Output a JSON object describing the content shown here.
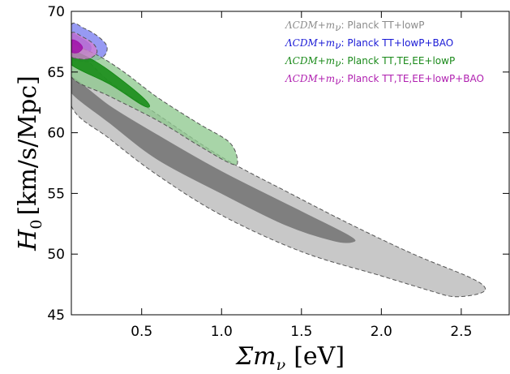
{
  "chart_data": {
    "type": "contour",
    "xlabel_base": "Σm",
    "xlabel_sub": "ν",
    "xlabel_unit": "[eV]",
    "ylabel_base": "H",
    "ylabel_sub": "0",
    "ylabel_unit": "[km/s/Mpc]",
    "xlim": [
      0.06,
      2.8
    ],
    "ylim": [
      45,
      70
    ],
    "xticks": [
      0.5,
      1.0,
      1.5,
      2.0,
      2.5
    ],
    "xtick_labels": [
      "0.5",
      "1.0",
      "1.5",
      "2.0",
      "2.5"
    ],
    "yticks": [
      45,
      50,
      55,
      60,
      65,
      70
    ],
    "ytick_labels": [
      "45",
      "50",
      "55",
      "60",
      "65",
      "70"
    ],
    "legend_placement": "top-right",
    "series": [
      {
        "name": "Planck TT+lowP",
        "legend_math": "ΛCDM+m",
        "legend_sub": "ν",
        "legend_text": ": Planck TT+lowP",
        "outer_color": "#c8c8c8",
        "inner_color": "#7f7f7f",
        "label_color": "#8c8c8c",
        "contour_95": [
          [
            0.06,
            62.2
          ],
          [
            0.3,
            59.5
          ],
          [
            0.6,
            56.5
          ],
          [
            1.0,
            53.2
          ],
          [
            1.5,
            50.2
          ],
          [
            2.0,
            48.2
          ],
          [
            2.3,
            47.0
          ],
          [
            2.45,
            46.5
          ],
          [
            2.6,
            46.7
          ],
          [
            2.65,
            47.2
          ],
          [
            2.55,
            48.1
          ],
          [
            2.2,
            50.0
          ],
          [
            1.8,
            52.5
          ],
          [
            1.4,
            55.2
          ],
          [
            1.0,
            58.0
          ],
          [
            0.6,
            61.5
          ],
          [
            0.3,
            64.2
          ],
          [
            0.06,
            66.8
          ]
        ],
        "contour_68": [
          [
            0.06,
            63.3
          ],
          [
            0.3,
            60.8
          ],
          [
            0.6,
            57.8
          ],
          [
            1.0,
            55.0
          ],
          [
            1.4,
            52.4
          ],
          [
            1.7,
            51.1
          ],
          [
            1.82,
            51.0
          ],
          [
            1.8,
            51.5
          ],
          [
            1.5,
            53.5
          ],
          [
            1.0,
            56.8
          ],
          [
            0.6,
            59.8
          ],
          [
            0.3,
            62.2
          ],
          [
            0.06,
            64.6
          ]
        ]
      },
      {
        "name": "Planck TT+lowP+BAO",
        "legend_math": "ΛCDM+m",
        "legend_sub": "ν",
        "legend_text": ": Planck TT+lowP+BAO",
        "outer_color": "#7a7df0",
        "inner_color": "#4040e0",
        "label_color": "#1a1ad6",
        "contour_95": [
          [
            0.06,
            68.9
          ],
          [
            0.14,
            68.6
          ],
          [
            0.22,
            68.0
          ],
          [
            0.28,
            67.2
          ],
          [
            0.27,
            66.4
          ],
          [
            0.2,
            65.9
          ],
          [
            0.12,
            65.9
          ],
          [
            0.06,
            66.3
          ]
        ],
        "contour_68": [
          [
            0.06,
            68.1
          ],
          [
            0.12,
            67.8
          ],
          [
            0.18,
            67.2
          ],
          [
            0.17,
            66.6
          ],
          [
            0.11,
            66.5
          ],
          [
            0.06,
            66.8
          ]
        ]
      },
      {
        "name": "Planck TT,TE,EE+lowP",
        "legend_math": "ΛCDM+m",
        "legend_sub": "ν",
        "legend_text": ": Planck TT,TE,EE+lowP",
        "outer_color": "#8fc98f",
        "inner_color": "#118811",
        "label_color": "#1a8a1a",
        "contour_95": [
          [
            0.06,
            64.6
          ],
          [
            0.3,
            63.0
          ],
          [
            0.6,
            61.0
          ],
          [
            0.85,
            59.0
          ],
          [
            1.05,
            57.5
          ],
          [
            1.1,
            57.6
          ],
          [
            1.05,
            59.2
          ],
          [
            0.85,
            60.8
          ],
          [
            0.6,
            62.9
          ],
          [
            0.4,
            64.9
          ],
          [
            0.25,
            66.2
          ],
          [
            0.12,
            67.0
          ],
          [
            0.06,
            67.2
          ]
        ],
        "contour_68": [
          [
            0.06,
            65.6
          ],
          [
            0.3,
            64.0
          ],
          [
            0.5,
            62.3
          ],
          [
            0.55,
            62.2
          ],
          [
            0.5,
            63.0
          ],
          [
            0.35,
            64.6
          ],
          [
            0.22,
            65.8
          ],
          [
            0.1,
            66.6
          ],
          [
            0.06,
            66.7
          ]
        ]
      },
      {
        "name": "Planck TT,TE,EE+lowP+BAO",
        "legend_math": "ΛCDM+m",
        "legend_sub": "ν",
        "legend_text": ": Planck TT,TE,EE+lowP+BAO",
        "outer_color": "#d27cd2",
        "inner_color": "#a010a8",
        "label_color": "#b020b0",
        "contour_95": [
          [
            0.06,
            68.2
          ],
          [
            0.13,
            67.9
          ],
          [
            0.2,
            67.3
          ],
          [
            0.22,
            66.6
          ],
          [
            0.17,
            66.1
          ],
          [
            0.1,
            66.1
          ],
          [
            0.06,
            66.4
          ]
        ],
        "contour_68": [
          [
            0.06,
            67.6
          ],
          [
            0.1,
            67.5
          ],
          [
            0.13,
            67.0
          ],
          [
            0.1,
            66.6
          ],
          [
            0.06,
            66.7
          ]
        ]
      }
    ]
  }
}
